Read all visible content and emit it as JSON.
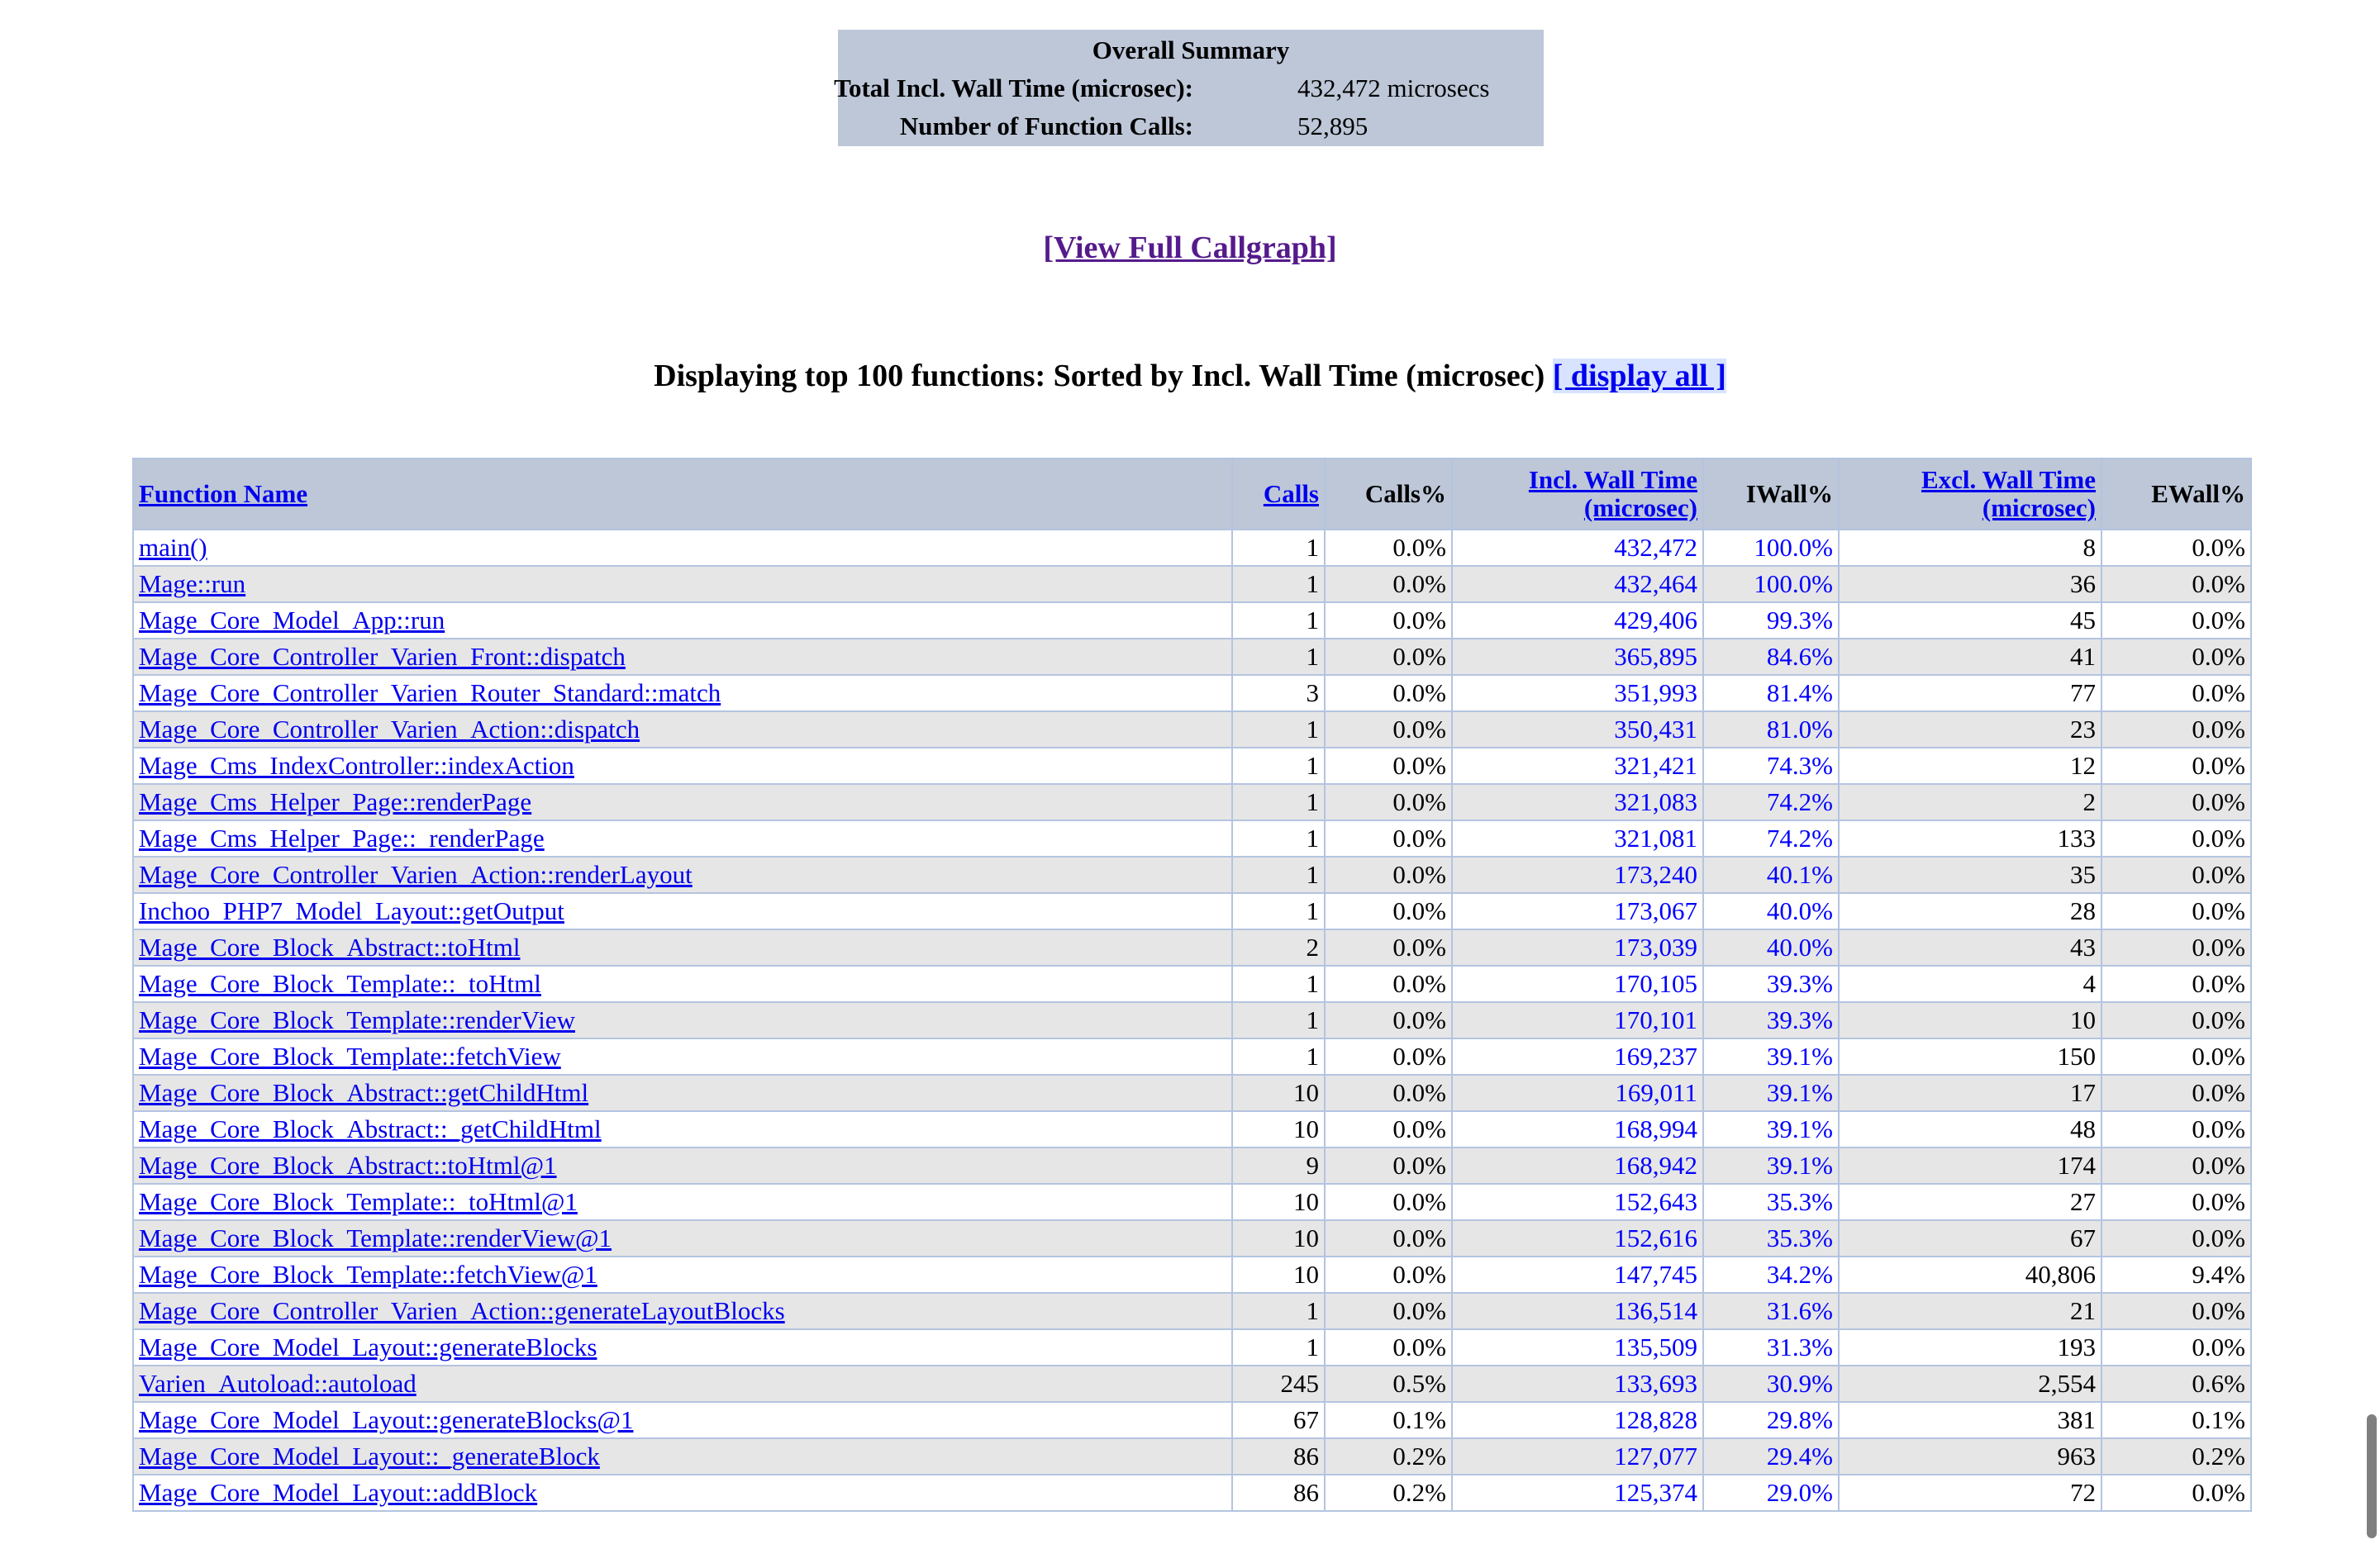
{
  "summary": {
    "title": "Overall Summary",
    "wall_time_label": "Total Incl. Wall Time (microsec):",
    "wall_time_value": "432,472 microsecs",
    "calls_label": "Number of Function Calls:",
    "calls_value": "52,895"
  },
  "callgraph_link": "[View Full Callgraph]",
  "heading": {
    "text": "Displaying top 100 functions: Sorted by Incl. Wall Time (microsec)",
    "display_all": "[ display all ]"
  },
  "table": {
    "headers": {
      "function_name": "Function Name",
      "calls": "Calls",
      "calls_pct": "Calls%",
      "incl_wall_1": "Incl. Wall Time",
      "incl_wall_2": "(microsec)",
      "iwall_pct": "IWall%",
      "excl_wall_1": "Excl. Wall Time",
      "excl_wall_2": "(microsec)",
      "ewall_pct": "EWall%"
    },
    "rows": [
      {
        "name": "main()",
        "calls": "1",
        "calls_pct": "0.0%",
        "incl": "432,472",
        "iwall": "100.0%",
        "excl": "8",
        "ewall": "0.0%"
      },
      {
        "name": "Mage::run",
        "calls": "1",
        "calls_pct": "0.0%",
        "incl": "432,464",
        "iwall": "100.0%",
        "excl": "36",
        "ewall": "0.0%"
      },
      {
        "name": "Mage_Core_Model_App::run",
        "calls": "1",
        "calls_pct": "0.0%",
        "incl": "429,406",
        "iwall": "99.3%",
        "excl": "45",
        "ewall": "0.0%"
      },
      {
        "name": "Mage_Core_Controller_Varien_Front::dispatch",
        "calls": "1",
        "calls_pct": "0.0%",
        "incl": "365,895",
        "iwall": "84.6%",
        "excl": "41",
        "ewall": "0.0%"
      },
      {
        "name": "Mage_Core_Controller_Varien_Router_Standard::match",
        "calls": "3",
        "calls_pct": "0.0%",
        "incl": "351,993",
        "iwall": "81.4%",
        "excl": "77",
        "ewall": "0.0%"
      },
      {
        "name": "Mage_Core_Controller_Varien_Action::dispatch",
        "calls": "1",
        "calls_pct": "0.0%",
        "incl": "350,431",
        "iwall": "81.0%",
        "excl": "23",
        "ewall": "0.0%"
      },
      {
        "name": "Mage_Cms_IndexController::indexAction",
        "calls": "1",
        "calls_pct": "0.0%",
        "incl": "321,421",
        "iwall": "74.3%",
        "excl": "12",
        "ewall": "0.0%"
      },
      {
        "name": "Mage_Cms_Helper_Page::renderPage",
        "calls": "1",
        "calls_pct": "0.0%",
        "incl": "321,083",
        "iwall": "74.2%",
        "excl": "2",
        "ewall": "0.0%"
      },
      {
        "name": "Mage_Cms_Helper_Page::_renderPage",
        "calls": "1",
        "calls_pct": "0.0%",
        "incl": "321,081",
        "iwall": "74.2%",
        "excl": "133",
        "ewall": "0.0%"
      },
      {
        "name": "Mage_Core_Controller_Varien_Action::renderLayout",
        "calls": "1",
        "calls_pct": "0.0%",
        "incl": "173,240",
        "iwall": "40.1%",
        "excl": "35",
        "ewall": "0.0%"
      },
      {
        "name": "Inchoo_PHP7_Model_Layout::getOutput",
        "calls": "1",
        "calls_pct": "0.0%",
        "incl": "173,067",
        "iwall": "40.0%",
        "excl": "28",
        "ewall": "0.0%"
      },
      {
        "name": "Mage_Core_Block_Abstract::toHtml",
        "calls": "2",
        "calls_pct": "0.0%",
        "incl": "173,039",
        "iwall": "40.0%",
        "excl": "43",
        "ewall": "0.0%"
      },
      {
        "name": "Mage_Core_Block_Template::_toHtml",
        "calls": "1",
        "calls_pct": "0.0%",
        "incl": "170,105",
        "iwall": "39.3%",
        "excl": "4",
        "ewall": "0.0%"
      },
      {
        "name": "Mage_Core_Block_Template::renderView",
        "calls": "1",
        "calls_pct": "0.0%",
        "incl": "170,101",
        "iwall": "39.3%",
        "excl": "10",
        "ewall": "0.0%"
      },
      {
        "name": "Mage_Core_Block_Template::fetchView",
        "calls": "1",
        "calls_pct": "0.0%",
        "incl": "169,237",
        "iwall": "39.1%",
        "excl": "150",
        "ewall": "0.0%"
      },
      {
        "name": "Mage_Core_Block_Abstract::getChildHtml",
        "calls": "10",
        "calls_pct": "0.0%",
        "incl": "169,011",
        "iwall": "39.1%",
        "excl": "17",
        "ewall": "0.0%"
      },
      {
        "name": "Mage_Core_Block_Abstract::_getChildHtml",
        "calls": "10",
        "calls_pct": "0.0%",
        "incl": "168,994",
        "iwall": "39.1%",
        "excl": "48",
        "ewall": "0.0%"
      },
      {
        "name": "Mage_Core_Block_Abstract::toHtml@1",
        "calls": "9",
        "calls_pct": "0.0%",
        "incl": "168,942",
        "iwall": "39.1%",
        "excl": "174",
        "ewall": "0.0%"
      },
      {
        "name": "Mage_Core_Block_Template::_toHtml@1",
        "calls": "10",
        "calls_pct": "0.0%",
        "incl": "152,643",
        "iwall": "35.3%",
        "excl": "27",
        "ewall": "0.0%"
      },
      {
        "name": "Mage_Core_Block_Template::renderView@1",
        "calls": "10",
        "calls_pct": "0.0%",
        "incl": "152,616",
        "iwall": "35.3%",
        "excl": "67",
        "ewall": "0.0%"
      },
      {
        "name": "Mage_Core_Block_Template::fetchView@1",
        "calls": "10",
        "calls_pct": "0.0%",
        "incl": "147,745",
        "iwall": "34.2%",
        "excl": "40,806",
        "ewall": "9.4%"
      },
      {
        "name": "Mage_Core_Controller_Varien_Action::generateLayoutBlocks",
        "calls": "1",
        "calls_pct": "0.0%",
        "incl": "136,514",
        "iwall": "31.6%",
        "excl": "21",
        "ewall": "0.0%"
      },
      {
        "name": "Mage_Core_Model_Layout::generateBlocks",
        "calls": "1",
        "calls_pct": "0.0%",
        "incl": "135,509",
        "iwall": "31.3%",
        "excl": "193",
        "ewall": "0.0%"
      },
      {
        "name": "Varien_Autoload::autoload",
        "calls": "245",
        "calls_pct": "0.5%",
        "incl": "133,693",
        "iwall": "30.9%",
        "excl": "2,554",
        "ewall": "0.6%"
      },
      {
        "name": "Mage_Core_Model_Layout::generateBlocks@1",
        "calls": "67",
        "calls_pct": "0.1%",
        "incl": "128,828",
        "iwall": "29.8%",
        "excl": "381",
        "ewall": "0.1%"
      },
      {
        "name": "Mage_Core_Model_Layout::_generateBlock",
        "calls": "86",
        "calls_pct": "0.2%",
        "incl": "127,077",
        "iwall": "29.4%",
        "excl": "963",
        "ewall": "0.2%"
      },
      {
        "name": "Mage_Core_Model_Layout::addBlock",
        "calls": "86",
        "calls_pct": "0.2%",
        "incl": "125,374",
        "iwall": "29.0%",
        "excl": "72",
        "ewall": "0.0%"
      }
    ]
  }
}
